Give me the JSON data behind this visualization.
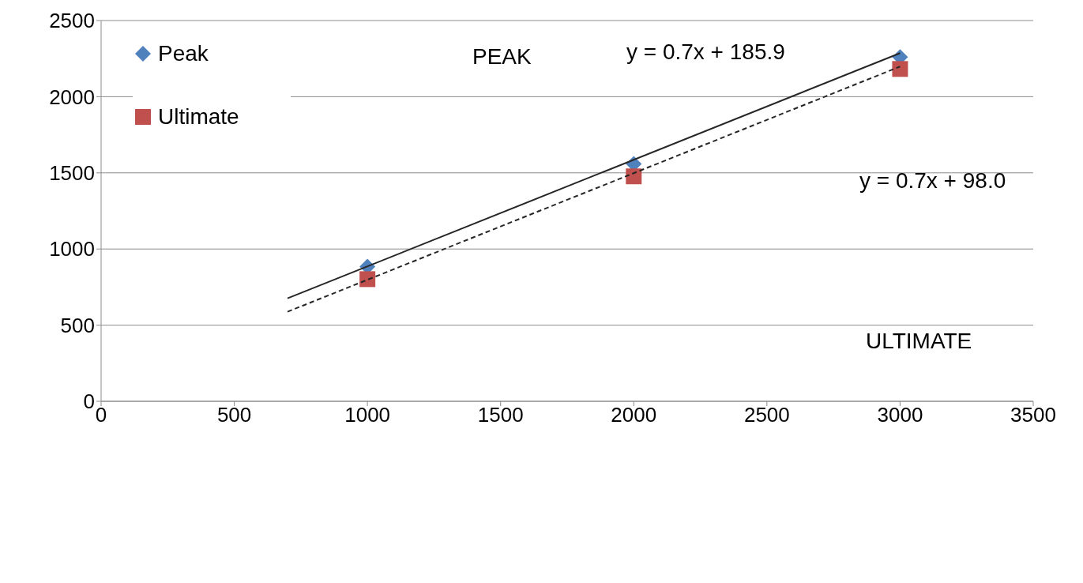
{
  "chart_data": {
    "type": "scatter",
    "xlim": [
      0,
      3500
    ],
    "xticks": [
      0,
      500,
      1000,
      1500,
      2000,
      2500,
      3000,
      3500
    ],
    "ylim": [
      0,
      2500
    ],
    "yticks": [
      0,
      500,
      1000,
      1500,
      2000,
      2500
    ],
    "grid": "y",
    "legend": "top left",
    "series": [
      {
        "name": "Peak",
        "color": "#4f81bd",
        "marker": "diamond",
        "x": [
          1000,
          2000,
          3000
        ],
        "values": [
          884,
          1558,
          2260
        ]
      },
      {
        "name": "Ultimate",
        "color": "#c0504d",
        "marker": "square",
        "x": [
          1000,
          2000,
          3000
        ],
        "values": [
          802,
          1477,
          2182
        ]
      },
      {
        "type": "line",
        "color": "#262626",
        "line_style": "solid",
        "marker": "none",
        "x": [
          700,
          3000
        ],
        "values": [
          676,
          2286
        ]
      },
      {
        "type": "line",
        "color": "#262626",
        "line_style": "dashed",
        "marker": "none",
        "x": [
          700,
          3000
        ],
        "values": [
          588,
          2198
        ]
      }
    ],
    "annotations": [
      "PEAK",
      "y = 0.7x + 185.9",
      "y = 0.7x + 98.0",
      "ULTIMATE"
    ]
  }
}
